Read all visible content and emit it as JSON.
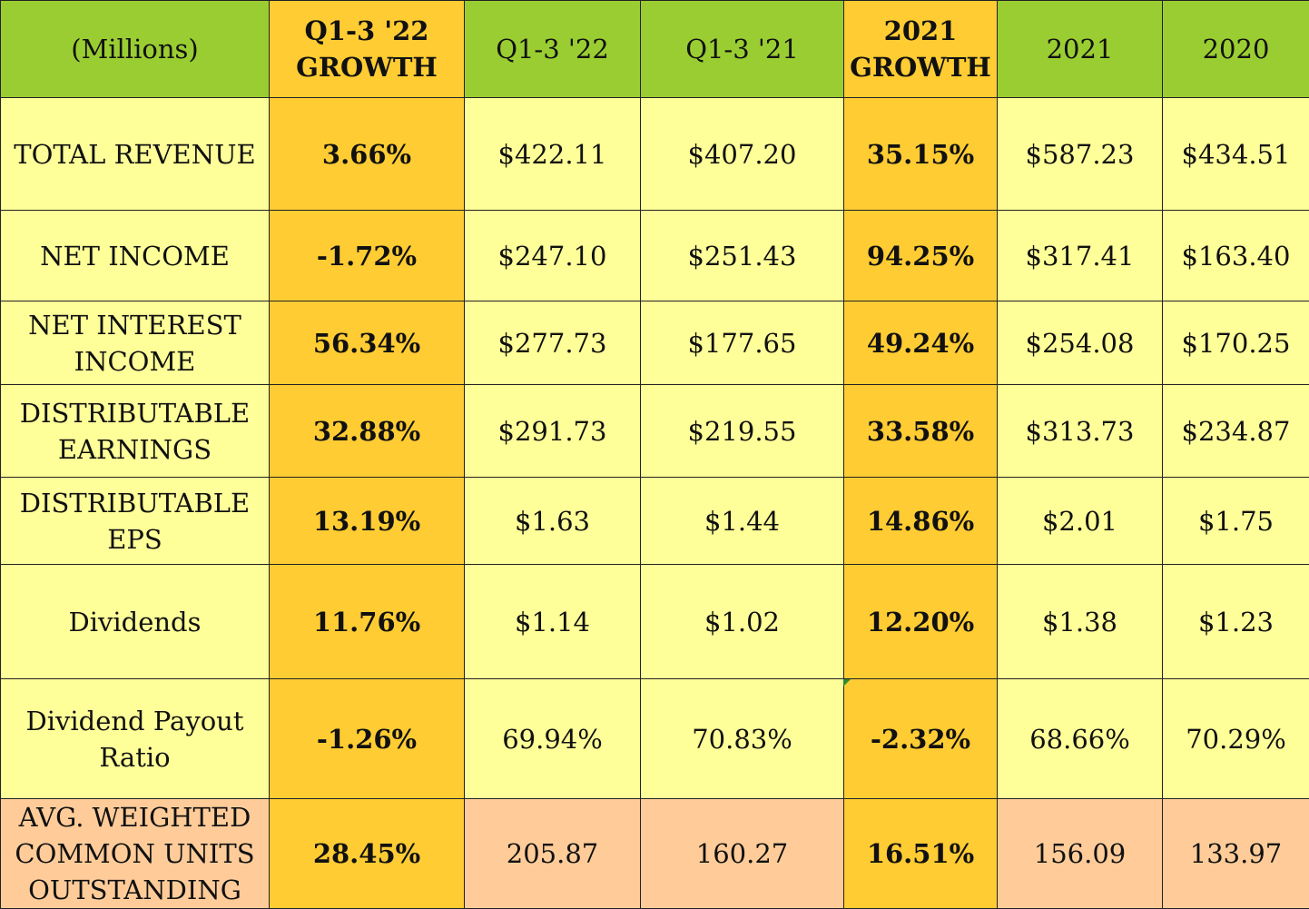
{
  "headers": [
    "(Millions)",
    "Q1-3 '22 GROWTH",
    "Q1-3 '22",
    "Q1-3 '21",
    "2021 GROWTH",
    "2021",
    "2020"
  ],
  "rows": [
    {
      "label": "TOTAL REVENUE",
      "values": [
        "3.66%",
        "$422.11",
        "$407.20",
        "35.15%",
        "$587.23",
        "$434.51"
      ]
    },
    {
      "label": "NET INCOME",
      "values": [
        "-1.72%",
        "$247.10",
        "$251.43",
        "94.25%",
        "$317.41",
        "$163.40"
      ]
    },
    {
      "label": "NET INTEREST INCOME",
      "values": [
        "56.34%",
        "$277.73",
        "$177.65",
        "49.24%",
        "$254.08",
        "$170.25"
      ]
    },
    {
      "label": "DISTRIBUTABLE EARNINGS",
      "values": [
        "32.88%",
        "$291.73",
        "$219.55",
        "33.58%",
        "$313.73",
        "$234.87"
      ]
    },
    {
      "label": "DISTRIBUTABLE EPS",
      "values": [
        "13.19%",
        "$1.63",
        "$1.44",
        "14.86%",
        "$2.01",
        "$1.75"
      ]
    },
    {
      "label": "Dividends",
      "values": [
        "11.76%",
        "$1.14",
        "$1.02",
        "12.20%",
        "$1.38",
        "$1.23"
      ]
    },
    {
      "label": "Dividend Payout Ratio",
      "values": [
        "-1.26%",
        "69.94%",
        "70.83%",
        "-2.32%",
        "68.66%",
        "70.29%"
      ]
    },
    {
      "label": "AVG. WEIGHTED COMMON UNITS OUTSTANDING",
      "values": [
        "28.45%",
        "205.87",
        "160.27",
        "16.51%",
        "156.09",
        "133.97"
      ]
    }
  ],
  "colors": {
    "header_bg": "#9acd32",
    "growth_bg": "#ffcc33",
    "body_bg": "#ffff99",
    "last_row_bg": "#ffcc99"
  }
}
